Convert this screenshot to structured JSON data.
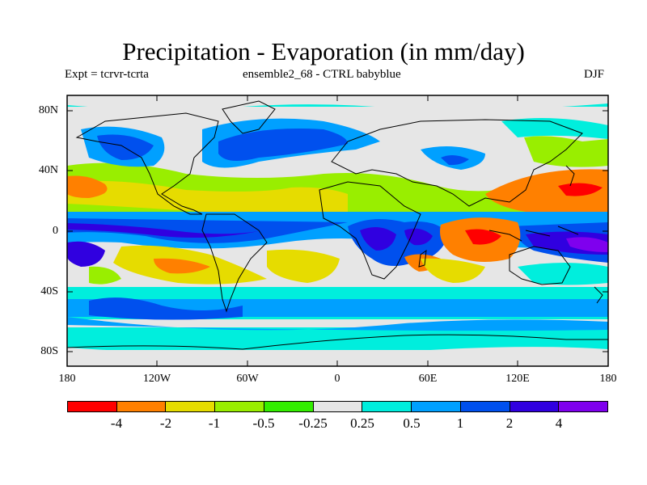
{
  "title": "Precipitation - Evaporation (in mm/day)",
  "subtitle": {
    "left": "Expt = tcrvr-tcrta",
    "center": "ensemble2_68 - CTRL babyblue",
    "right": "DJF"
  },
  "axes": {
    "y_ticks": [
      "80N",
      "40N",
      "0",
      "40S",
      "80S"
    ],
    "x_ticks": [
      "180",
      "120W",
      "60W",
      "0",
      "60E",
      "120E",
      "180"
    ]
  },
  "colorbar": {
    "colors": [
      "#ff0000",
      "#ff8000",
      "#e6dc00",
      "#99ee00",
      "#33ee00",
      "#e6e6e6",
      "#00eedd",
      "#00a0ff",
      "#0050ee",
      "#3000e0",
      "#7f00ee"
    ],
    "labels": [
      "-4",
      "-2",
      "-1",
      "-0.5",
      "-0.25",
      "0.25",
      "0.5",
      "1",
      "2",
      "4"
    ]
  }
}
